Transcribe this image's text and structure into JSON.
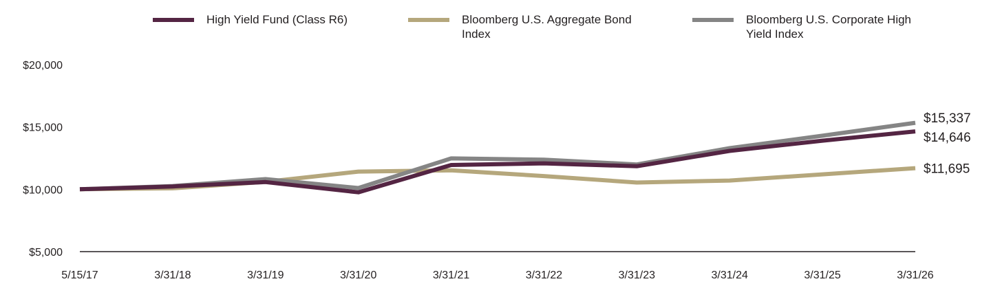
{
  "chart_data": {
    "type": "line",
    "title": "",
    "xlabel": "",
    "ylabel": "",
    "x": [
      "5/15/17",
      "3/31/18",
      "3/31/19",
      "3/31/20",
      "3/31/21",
      "3/31/22",
      "3/31/23",
      "3/31/24",
      "3/31/25",
      "3/31/26"
    ],
    "ylim": [
      5000,
      20000
    ],
    "yticks": [
      5000,
      10000,
      15000,
      20000
    ],
    "ytick_labels": [
      "$5,000",
      "$10,000",
      "$15,000",
      "$20,000"
    ],
    "legend_position": "top",
    "grid": false,
    "series": [
      {
        "name": "High Yield Fund (Class R6)",
        "color": "#542543",
        "values": [
          10000,
          10230,
          10580,
          9760,
          11950,
          12080,
          11850,
          13080,
          13900,
          14646
        ],
        "end_label": "$14,646"
      },
      {
        "name": "Bloomberg U.S. Aggregate Bond Index",
        "color": "#b5a77c",
        "values": [
          10000,
          10080,
          10600,
          11420,
          11520,
          11060,
          10540,
          10700,
          11200,
          11695
        ],
        "end_label": "$11,695"
      },
      {
        "name": "Bloomberg U.S. Corporate High Yield Index",
        "color": "#858585",
        "values": [
          10000,
          10260,
          10820,
          10100,
          12480,
          12380,
          11990,
          13300,
          14300,
          15337
        ],
        "end_label": "$15,337"
      }
    ]
  }
}
